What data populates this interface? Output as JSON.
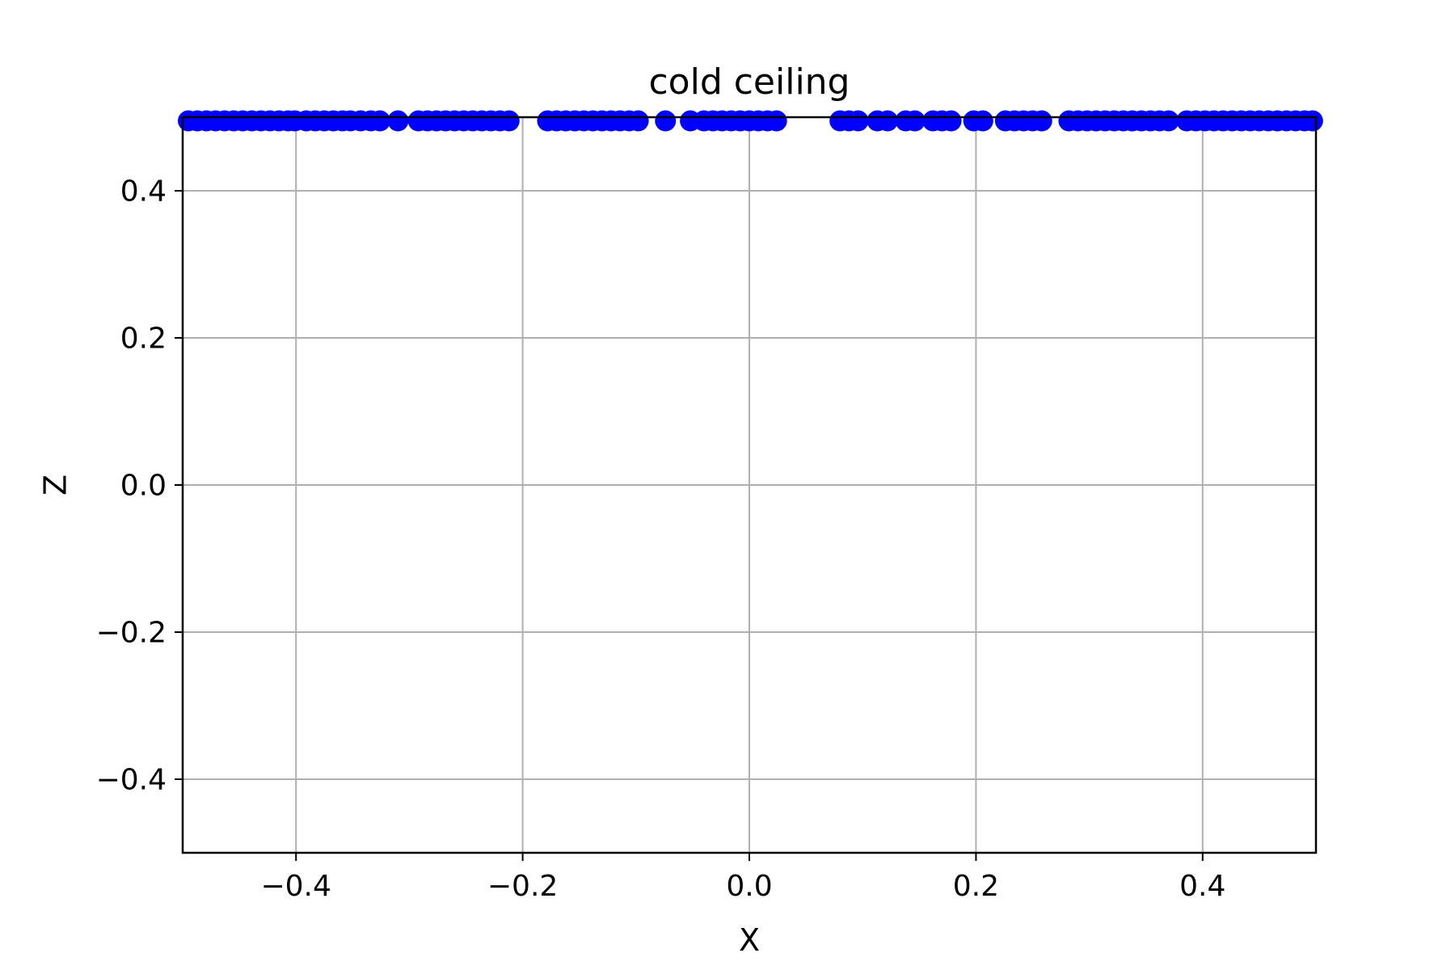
{
  "chart_data": {
    "type": "scatter",
    "title": "cold ceiling",
    "xlabel": "X",
    "ylabel": "Z",
    "xlim": [
      -0.5,
      0.5
    ],
    "ylim": [
      -0.5,
      0.5
    ],
    "grid": true,
    "xticks": [
      -0.4,
      -0.2,
      0.0,
      0.2,
      0.4
    ],
    "yticks": [
      -0.4,
      -0.2,
      0.0,
      0.2,
      0.4
    ],
    "xtick_labels": [
      "−0.4",
      "−0.2",
      "0.0",
      "0.2",
      "0.4"
    ],
    "ytick_labels": [
      "−0.4",
      "−0.2",
      "0.0",
      "0.2",
      "0.4"
    ],
    "marker_color": "#0000ff",
    "series": [
      {
        "x": [
          -0.495,
          -0.487,
          -0.479,
          -0.471,
          -0.463,
          -0.455,
          -0.447,
          -0.439,
          -0.431,
          -0.423,
          -0.415,
          -0.407,
          -0.401,
          -0.391,
          -0.383,
          -0.375,
          -0.367,
          -0.359,
          -0.352,
          -0.343,
          -0.334,
          -0.326,
          -0.31,
          -0.292,
          -0.284,
          -0.276,
          -0.268,
          -0.26,
          -0.252,
          -0.244,
          -0.236,
          -0.228,
          -0.22,
          -0.212,
          -0.178,
          -0.17,
          -0.162,
          -0.154,
          -0.146,
          -0.138,
          -0.13,
          -0.122,
          -0.114,
          -0.106,
          -0.098,
          -0.074,
          -0.052,
          -0.04,
          -0.032,
          -0.024,
          -0.016,
          -0.008,
          0.0,
          0.008,
          0.016,
          0.024,
          0.08,
          0.088,
          0.096,
          0.113,
          0.122,
          0.138,
          0.146,
          0.162,
          0.17,
          0.178,
          0.198,
          0.206,
          0.226,
          0.234,
          0.242,
          0.25,
          0.258,
          0.282,
          0.29,
          0.298,
          0.306,
          0.314,
          0.322,
          0.33,
          0.338,
          0.346,
          0.354,
          0.362,
          0.37,
          0.386,
          0.394,
          0.402,
          0.41,
          0.418,
          0.426,
          0.434,
          0.442,
          0.45,
          0.458,
          0.466,
          0.474,
          0.482,
          0.49,
          0.497
        ],
        "y": [
          0.495,
          0.495,
          0.495,
          0.495,
          0.495,
          0.495,
          0.495,
          0.495,
          0.495,
          0.495,
          0.495,
          0.495,
          0.495,
          0.495,
          0.495,
          0.495,
          0.495,
          0.495,
          0.495,
          0.495,
          0.495,
          0.495,
          0.495,
          0.495,
          0.495,
          0.495,
          0.495,
          0.495,
          0.495,
          0.495,
          0.495,
          0.495,
          0.495,
          0.495,
          0.495,
          0.495,
          0.495,
          0.495,
          0.495,
          0.495,
          0.495,
          0.495,
          0.495,
          0.495,
          0.495,
          0.495,
          0.495,
          0.495,
          0.495,
          0.495,
          0.495,
          0.495,
          0.495,
          0.495,
          0.495,
          0.495,
          0.495,
          0.495,
          0.495,
          0.495,
          0.495,
          0.495,
          0.495,
          0.495,
          0.495,
          0.495,
          0.495,
          0.495,
          0.495,
          0.495,
          0.495,
          0.495,
          0.495,
          0.495,
          0.495,
          0.495,
          0.495,
          0.495,
          0.495,
          0.495,
          0.495,
          0.495,
          0.495,
          0.495,
          0.495,
          0.495,
          0.495,
          0.495,
          0.495,
          0.495,
          0.495,
          0.495,
          0.495,
          0.495,
          0.495,
          0.495,
          0.495,
          0.495,
          0.495,
          0.495
        ]
      }
    ]
  }
}
